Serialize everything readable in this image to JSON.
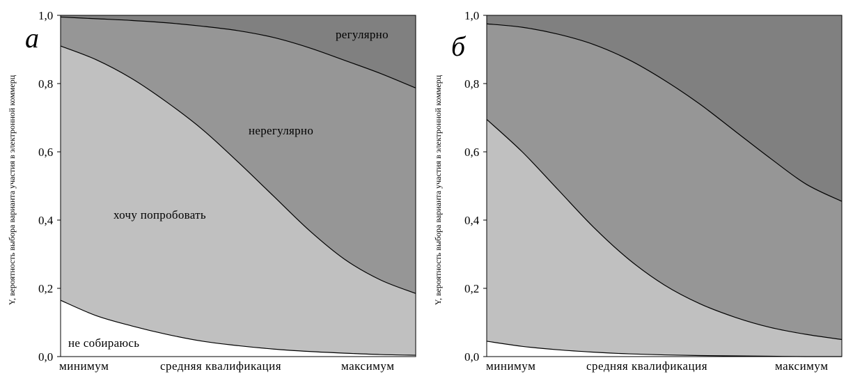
{
  "chart_data": [
    {
      "type": "area",
      "panel_label": "а",
      "ylabel": "Y, вероятность выбора варианта участия в электронной коммерц",
      "ylim": [
        0,
        1
      ],
      "y_ticks": [
        "0,0",
        "0,2",
        "0,4",
        "0,6",
        "0,8",
        "1,0"
      ],
      "x_ticks": [
        "минимум",
        "средняя квалификация",
        "максимум"
      ],
      "x": [
        0,
        0.1,
        0.2,
        0.3,
        0.4,
        0.5,
        0.6,
        0.7,
        0.8,
        0.9,
        1.0
      ],
      "boundaries": [
        [
          0.165,
          0.12,
          0.09,
          0.065,
          0.045,
          0.032,
          0.022,
          0.015,
          0.01,
          0.006,
          0.004
        ],
        [
          0.91,
          0.87,
          0.815,
          0.745,
          0.665,
          0.57,
          0.47,
          0.37,
          0.285,
          0.225,
          0.185
        ],
        [
          0.995,
          0.99,
          0.985,
          0.978,
          0.968,
          0.955,
          0.935,
          0.905,
          0.868,
          0.83,
          0.787
        ]
      ],
      "series": [
        {
          "name": "не собираюсь",
          "color": "#ffffff"
        },
        {
          "name": "хочу попробовать",
          "color": "#c0c0c0"
        },
        {
          "name": "нерегулярно",
          "color": "#969696"
        },
        {
          "name": "регулярно",
          "color": "#808080"
        }
      ],
      "annotations": [
        "регулярно",
        "нерегулярно",
        "хочу попробовать",
        "не собираюсь"
      ]
    },
    {
      "type": "area",
      "panel_label": "б",
      "ylabel": "Y, вероятность выбора варианта участия в электронной коммерц",
      "ylim": [
        0,
        1
      ],
      "y_ticks": [
        "0,0",
        "0,2",
        "0,4",
        "0,6",
        "0,8",
        "1,0"
      ],
      "x_ticks": [
        "минимум",
        "средняя квалификация",
        "максимум"
      ],
      "x": [
        0,
        0.1,
        0.2,
        0.3,
        0.4,
        0.5,
        0.6,
        0.7,
        0.8,
        0.9,
        1.0
      ],
      "boundaries": [
        [
          0.045,
          0.03,
          0.02,
          0.013,
          0.008,
          0.005,
          0.003,
          0.002,
          0.001,
          0.0,
          0.0
        ],
        [
          0.695,
          0.6,
          0.49,
          0.38,
          0.285,
          0.21,
          0.155,
          0.115,
          0.085,
          0.065,
          0.05
        ],
        [
          0.975,
          0.965,
          0.945,
          0.915,
          0.87,
          0.81,
          0.74,
          0.66,
          0.58,
          0.505,
          0.455
        ]
      ],
      "series": [
        {
          "name": "не собираюсь",
          "color": "#ffffff"
        },
        {
          "name": "хочу попробовать",
          "color": "#c0c0c0"
        },
        {
          "name": "нерегулярно",
          "color": "#969696"
        },
        {
          "name": "регулярно",
          "color": "#808080"
        }
      ],
      "annotations": []
    }
  ]
}
